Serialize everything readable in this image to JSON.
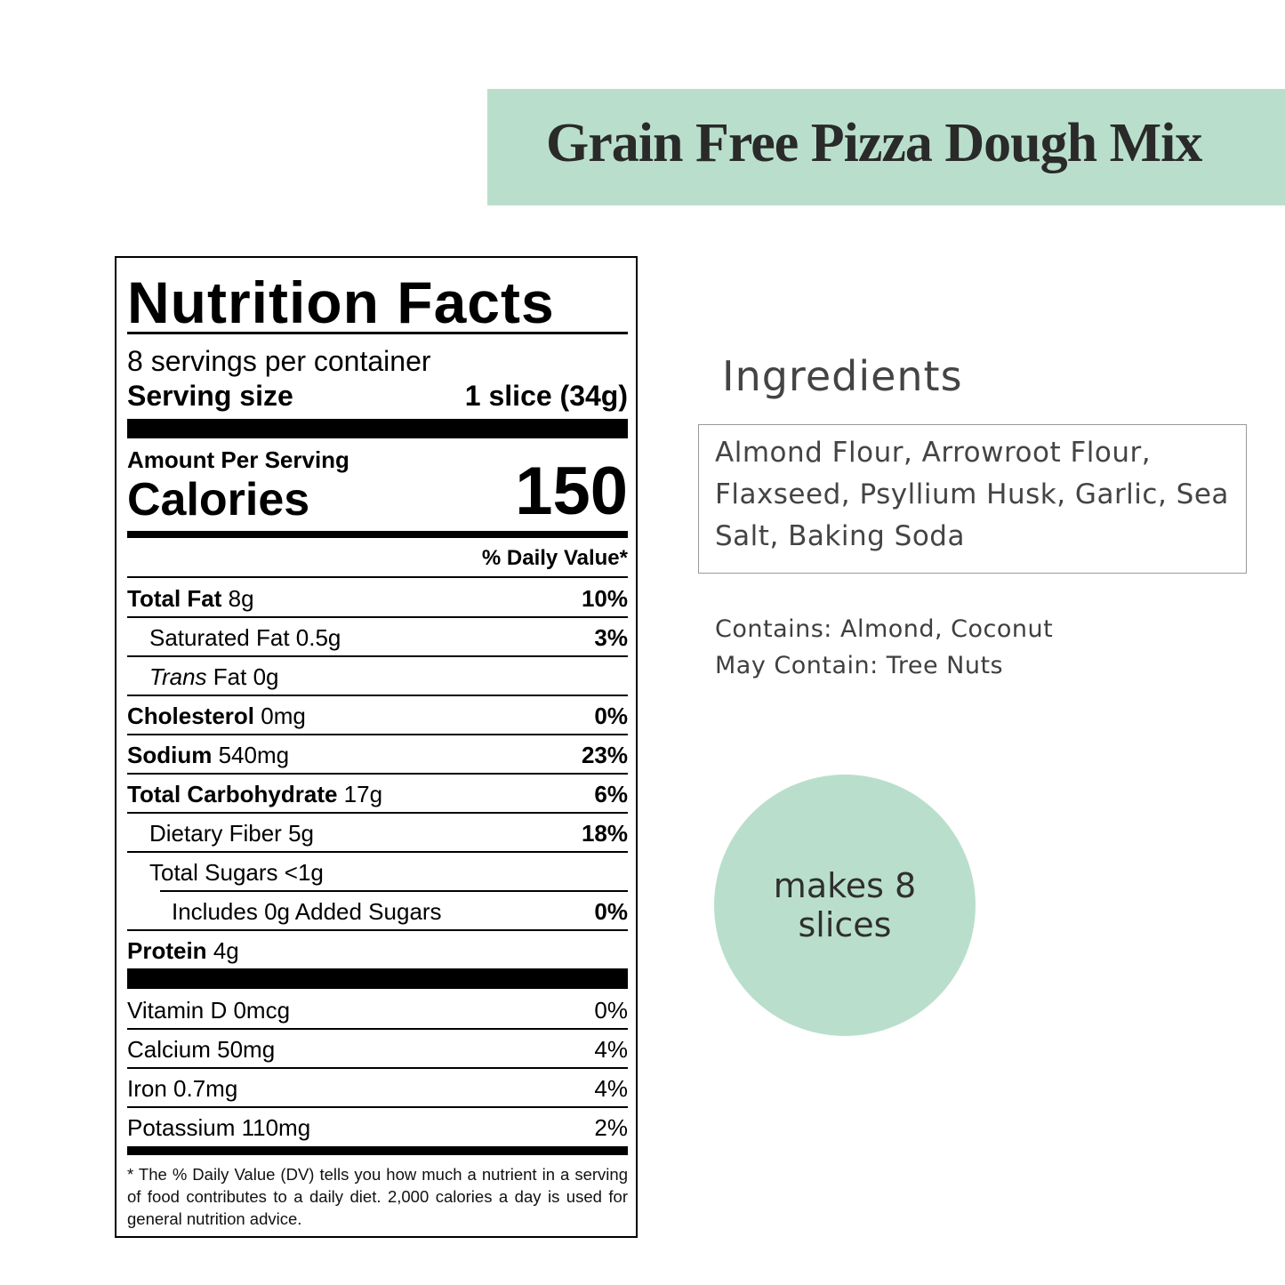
{
  "banner": {
    "title": "Grain Free Pizza Dough Mix",
    "color": "#b9dfcc"
  },
  "nutrition": {
    "title": "Nutrition Facts",
    "servings": "8 servings per container",
    "serving_size_label": "Serving size",
    "serving_size_value": "1 slice (34g)",
    "amount_per_serving": "Amount Per Serving",
    "calories_label": "Calories",
    "calories_value": "150",
    "dv_header": "% Daily Value*",
    "rows": [
      {
        "name": "Total Fat",
        "amount": "8g",
        "dv": "10%"
      },
      {
        "name": "Saturated Fat",
        "amount": "0.5g",
        "dv": "3%"
      },
      {
        "name": "Trans",
        "suffix": "Fat",
        "amount": "0g",
        "dv": ""
      },
      {
        "name": "Cholesterol",
        "amount": "0mg",
        "dv": "0%"
      },
      {
        "name": "Sodium",
        "amount": "540mg",
        "dv": "23%"
      },
      {
        "name": "Total Carbohydrate",
        "amount": "17g",
        "dv": "6%"
      },
      {
        "name": "Dietary Fiber",
        "amount": "5g",
        "dv": "18%"
      },
      {
        "name": "Total Sugars",
        "amount": "<1g",
        "dv": ""
      },
      {
        "name": "Includes 0g Added Sugars",
        "amount": "",
        "dv": "0%"
      },
      {
        "name": "Protein",
        "amount": "4g",
        "dv": ""
      }
    ],
    "micros": [
      {
        "label": "Vitamin D 0mcg",
        "dv": "0%"
      },
      {
        "label": "Calcium 50mg",
        "dv": "4%"
      },
      {
        "label": "Iron 0.7mg",
        "dv": "4%"
      },
      {
        "label": "Potassium 110mg",
        "dv": "2%"
      }
    ],
    "footnote": "* The % Daily Value (DV) tells you how much a nutrient in a serving of food contributes to a daily diet. 2,000 calories a day is used for general nutrition advice."
  },
  "ingredients": {
    "heading": "Ingredients",
    "text": "Almond Flour, Arrowroot Flour, Flaxseed, Psyllium Husk, Garlic, Sea Salt, Baking Soda",
    "contains": "Contains: Almond, Coconut",
    "may_contain": "May Contain: Tree Nuts"
  },
  "badge": {
    "line1": "makes 8",
    "line2": "slices"
  }
}
